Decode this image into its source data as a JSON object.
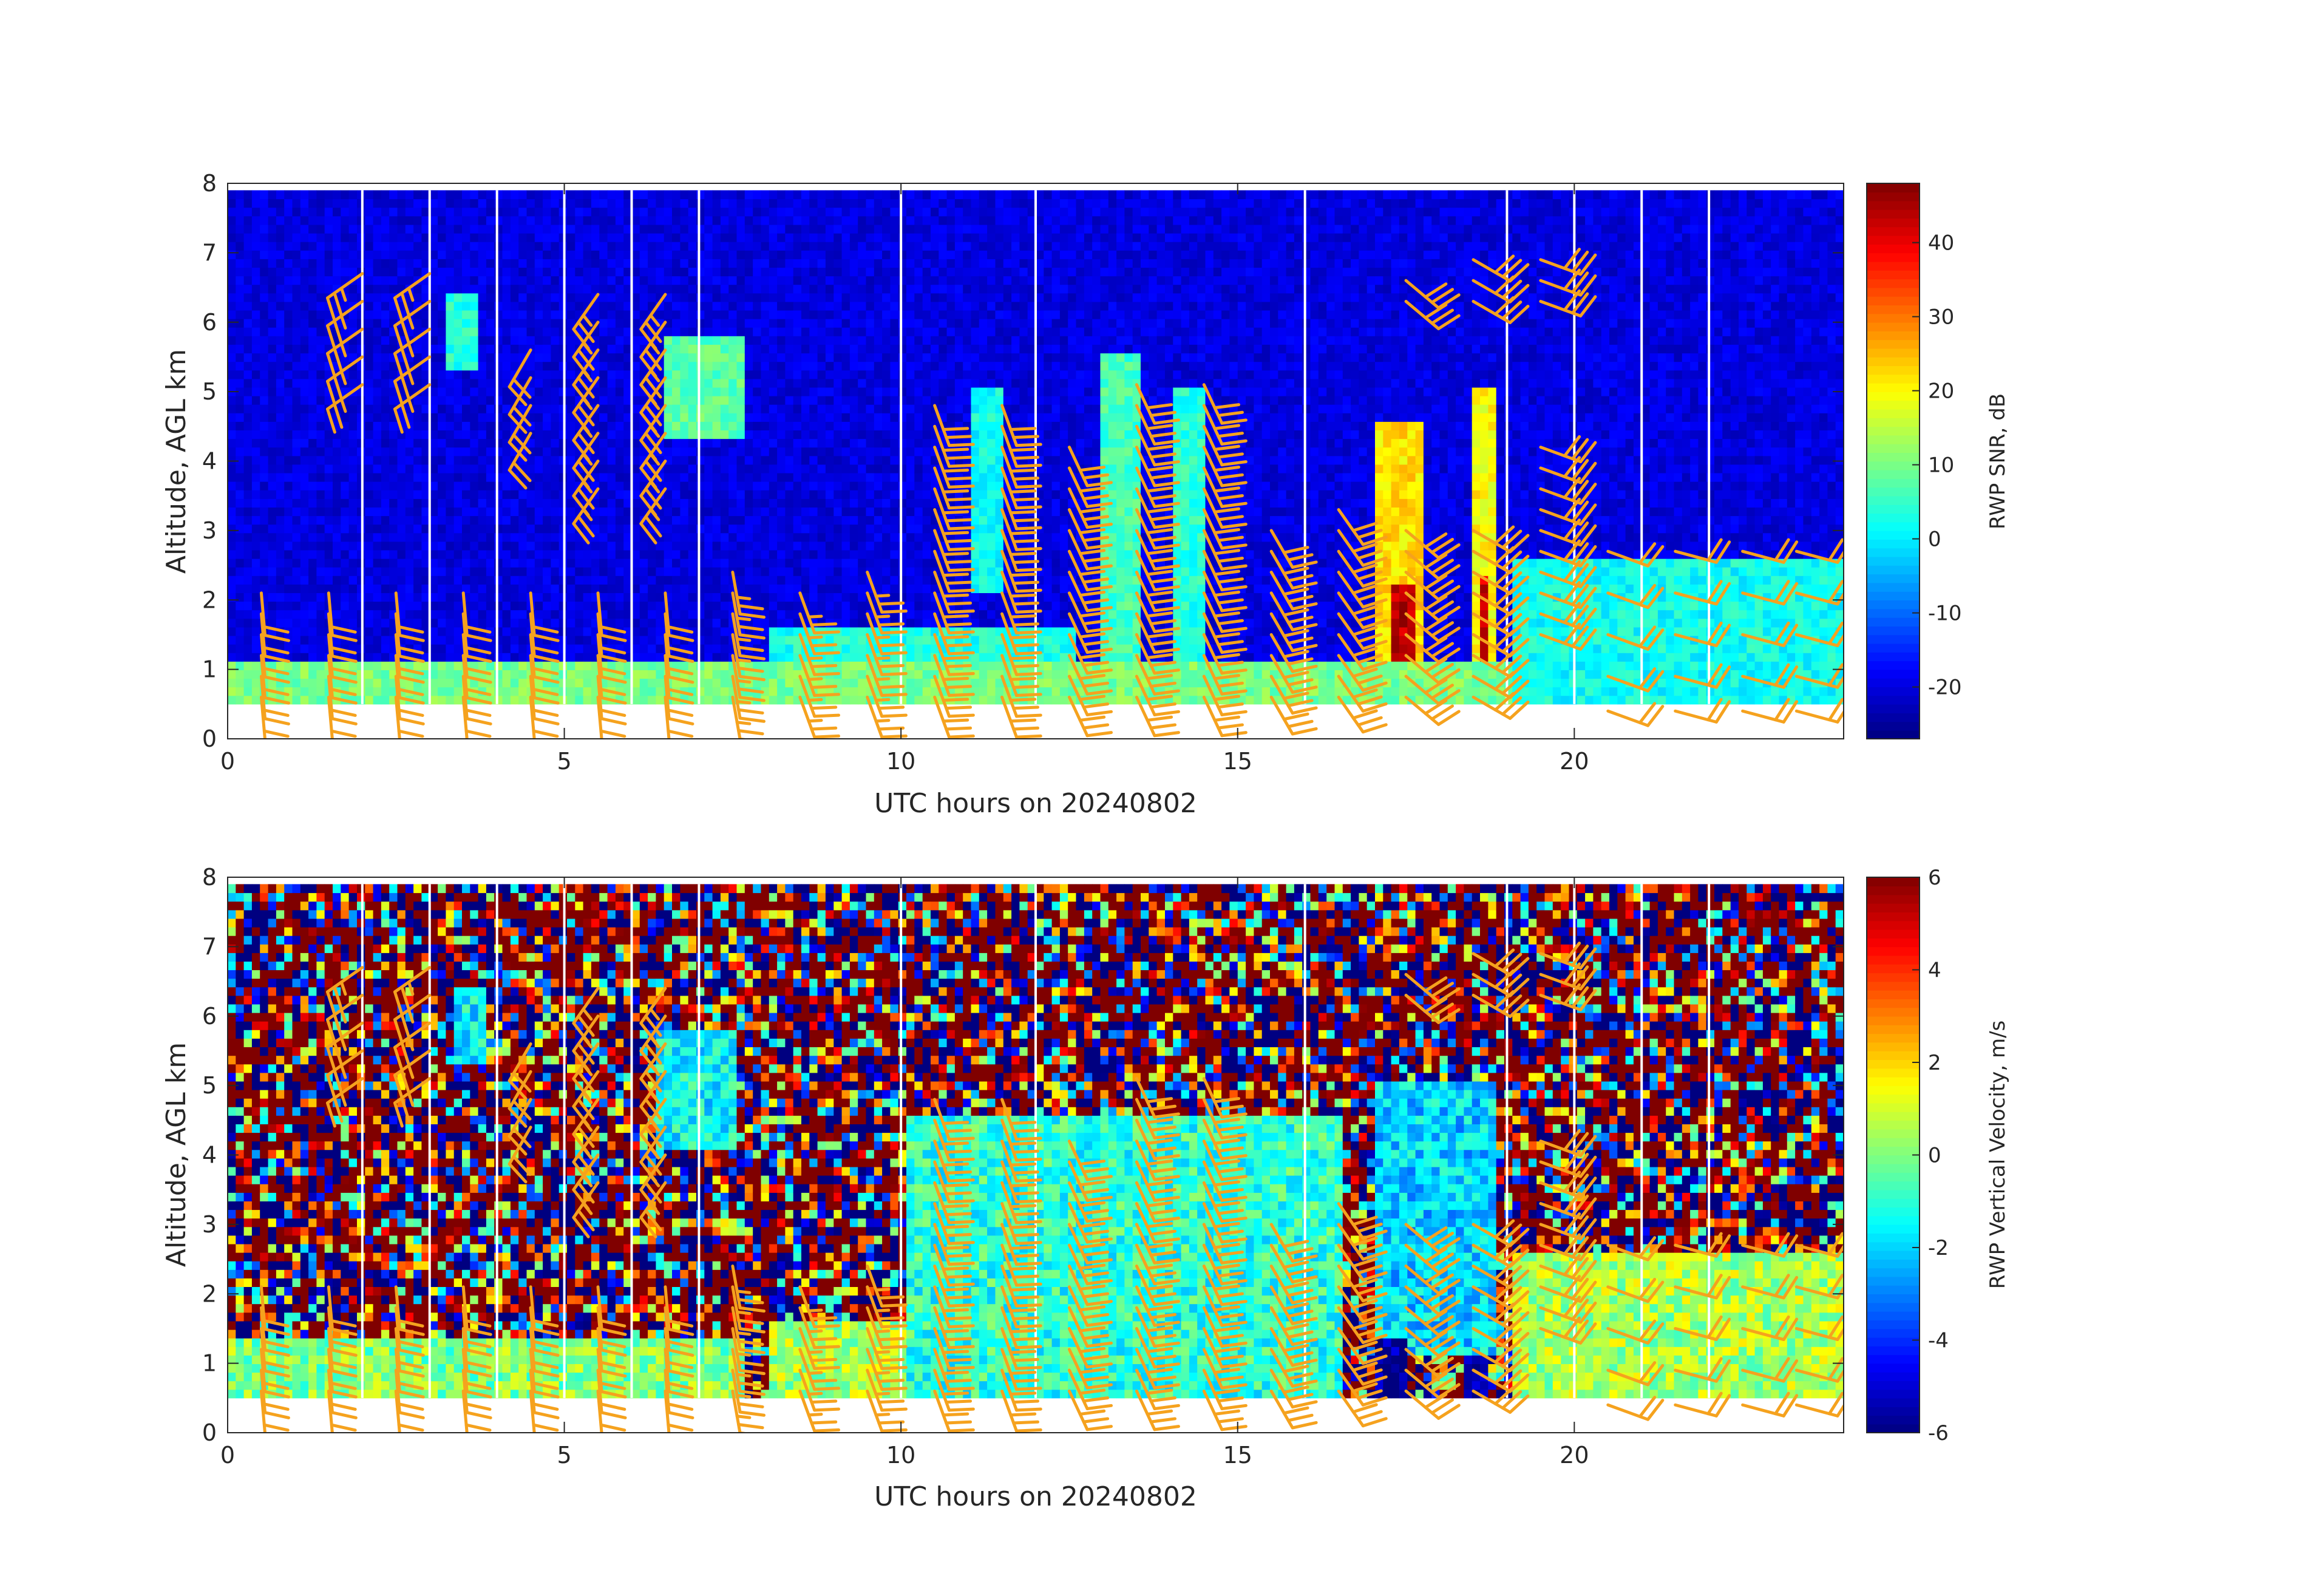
{
  "figure": {
    "background": "#ffffff"
  },
  "chart_data": [
    {
      "type": "heatmap",
      "field": "snr",
      "xlabel": "UTC hours on 20240802",
      "ylabel": "Altitude, AGL km",
      "xlim": [
        0,
        24
      ],
      "ylim": [
        0,
        8
      ],
      "xticks": [
        0,
        5,
        10,
        15,
        20
      ],
      "yticks": [
        0,
        1,
        2,
        3,
        4,
        5,
        6,
        7,
        8
      ],
      "colorbar": {
        "label": "RWP SNR, dB",
        "range": [
          -27,
          48
        ],
        "ticks": [
          40,
          30,
          20,
          10,
          0,
          -10,
          -20
        ],
        "colormap": "jet"
      },
      "data_altitude_range_km": [
        0.5,
        7.9
      ],
      "gaps_hours": [
        2.0,
        3.0,
        4.0,
        5.0,
        6.0,
        7.0,
        10.0,
        12.0,
        16.0,
        19.0,
        20.0,
        21.0,
        22.0
      ],
      "features": [
        {
          "x0": 6.4,
          "x1": 7.6,
          "y0": 4.3,
          "y1": 5.8,
          "value": 8
        },
        {
          "x0": 3.2,
          "x1": 3.7,
          "y0": 5.3,
          "y1": 6.3,
          "value": 4
        },
        {
          "x0": 17.0,
          "x1": 17.7,
          "y0": 0.5,
          "y1": 4.5,
          "value": 22
        },
        {
          "x0": 17.2,
          "x1": 17.6,
          "y0": 0.5,
          "y1": 2.2,
          "value": 44
        },
        {
          "x0": 18.4,
          "x1": 18.8,
          "y0": 0.5,
          "y1": 5.0,
          "value": 20
        },
        {
          "x0": 18.5,
          "x1": 18.7,
          "y0": 0.5,
          "y1": 2.3,
          "value": 42
        },
        {
          "x0": 12.9,
          "x1": 13.5,
          "y0": 0.5,
          "y1": 5.5,
          "value": 6
        },
        {
          "x0": 14.0,
          "x1": 14.5,
          "y0": 0.5,
          "y1": 5.0,
          "value": 4
        },
        {
          "x0": 11.0,
          "x1": 11.5,
          "y0": 2.0,
          "y1": 5.0,
          "value": 2
        },
        {
          "x0": 8.0,
          "x1": 12.5,
          "y0": 1.1,
          "y1": 1.6,
          "value": 3
        },
        {
          "x0": 0.0,
          "x1": 24.0,
          "y0": 0.5,
          "y1": 1.0,
          "value": 10
        },
        {
          "x0": 19.0,
          "x1": 24.0,
          "y0": 0.5,
          "y1": 2.5,
          "value": 2
        }
      ]
    },
    {
      "type": "heatmap",
      "field": "w",
      "xlabel": "UTC hours on 20240802",
      "ylabel": "Altitude, AGL km",
      "xlim": [
        0,
        24
      ],
      "ylim": [
        0,
        8
      ],
      "xticks": [
        0,
        5,
        10,
        15,
        20
      ],
      "yticks": [
        0,
        1,
        2,
        3,
        4,
        5,
        6,
        7,
        8
      ],
      "colorbar": {
        "label": "RWP Vertical Velocity, m/s",
        "range": [
          -6,
          6
        ],
        "ticks": [
          6,
          4,
          2,
          0,
          -2,
          -4,
          -6
        ],
        "colormap": "jet"
      },
      "data_altitude_range_km": [
        0.5,
        7.9
      ],
      "gaps_hours": [
        2.0,
        3.0,
        4.0,
        5.0,
        6.0,
        7.0,
        10.0,
        12.0,
        16.0,
        19.0,
        20.0,
        21.0,
        22.0
      ],
      "features": [
        {
          "x0": 0.0,
          "x1": 7.6,
          "y0": 0.5,
          "y1": 1.3,
          "value": 0
        },
        {
          "x0": 8.0,
          "x1": 12.5,
          "y0": 0.5,
          "y1": 1.6,
          "value": 0.5
        },
        {
          "x0": 6.3,
          "x1": 7.5,
          "y0": 4.0,
          "y1": 5.8,
          "value": -1.5
        },
        {
          "x0": 3.3,
          "x1": 3.8,
          "y0": 5.2,
          "y1": 6.3,
          "value": -1.5
        },
        {
          "x0": 17.0,
          "x1": 18.8,
          "y0": 1.0,
          "y1": 5.0,
          "value": -2
        },
        {
          "x0": 17.0,
          "x1": 17.4,
          "y0": 0.2,
          "y1": 1.3,
          "value": -6
        },
        {
          "x0": 18.3,
          "x1": 18.6,
          "y0": 0.2,
          "y1": 1.0,
          "value": -6
        },
        {
          "x0": 19.0,
          "x1": 24.0,
          "y0": 0.5,
          "y1": 2.5,
          "value": 0.5
        },
        {
          "x0": 10.0,
          "x1": 16.5,
          "y0": 0.5,
          "y1": 4.5,
          "value": -1
        }
      ]
    }
  ],
  "wind_barbs": {
    "color": "#f5a21e",
    "columns": [
      {
        "t": 0.5,
        "heights": [
          0.6,
          0.9,
          1.2,
          1.5,
          1.8,
          2.1
        ],
        "speed_kt": 20,
        "dir": 175
      },
      {
        "t": 1.5,
        "heights": [
          0.6,
          0.9,
          1.2,
          1.5,
          1.8,
          2.1
        ],
        "speed_kt": 20,
        "dir": 175
      },
      {
        "t": 2.5,
        "heights": [
          0.6,
          0.9,
          1.2,
          1.5,
          1.8,
          2.1
        ],
        "speed_kt": 20,
        "dir": 175
      },
      {
        "t": 3.5,
        "heights": [
          0.6,
          0.9,
          1.2,
          1.5,
          1.8,
          2.1
        ],
        "speed_kt": 20,
        "dir": 175
      },
      {
        "t": 4.5,
        "heights": [
          0.6,
          0.9,
          1.2,
          1.5,
          1.8,
          2.1
        ],
        "speed_kt": 20,
        "dir": 175
      },
      {
        "t": 5.5,
        "heights": [
          0.6,
          0.9,
          1.2,
          1.5,
          1.8,
          2.1
        ],
        "speed_kt": 20,
        "dir": 175
      },
      {
        "t": 6.5,
        "heights": [
          0.6,
          0.9,
          1.2,
          1.5,
          1.8,
          2.1
        ],
        "speed_kt": 20,
        "dir": 175
      },
      {
        "t": 7.5,
        "heights": [
          0.6,
          0.9,
          1.2,
          1.5,
          1.8,
          2.1,
          2.4
        ],
        "speed_kt": 25,
        "dir": 170
      },
      {
        "t": 8.5,
        "heights": [
          0.6,
          0.9,
          1.2,
          1.5,
          1.8,
          2.1
        ],
        "speed_kt": 25,
        "dir": 160
      },
      {
        "t": 9.5,
        "heights": [
          0.6,
          0.9,
          1.2,
          1.5,
          1.8,
          2.1,
          2.4
        ],
        "speed_kt": 25,
        "dir": 160
      },
      {
        "t": 10.5,
        "heights": [
          0.6,
          0.9,
          1.2,
          1.5,
          1.8,
          2.1,
          2.4,
          2.7,
          3.0,
          3.3,
          3.6,
          3.9,
          4.2,
          4.5,
          4.8
        ],
        "speed_kt": 30,
        "dir": 160
      },
      {
        "t": 11.5,
        "heights": [
          0.6,
          0.9,
          1.2,
          1.5,
          1.8,
          2.1,
          2.4,
          2.7,
          3.0,
          3.3,
          3.6,
          3.9,
          4.2,
          4.5,
          4.8
        ],
        "speed_kt": 30,
        "dir": 160
      },
      {
        "t": 12.5,
        "heights": [
          0.6,
          0.9,
          1.2,
          1.5,
          1.8,
          2.1,
          2.4,
          2.7,
          3.0,
          3.3,
          3.6,
          3.9,
          4.2
        ],
        "speed_kt": 30,
        "dir": 155
      },
      {
        "t": 13.5,
        "heights": [
          0.6,
          0.9,
          1.2,
          1.5,
          1.8,
          2.1,
          2.4,
          2.7,
          3.0,
          3.3,
          3.6,
          3.9,
          4.2,
          4.5,
          4.8,
          5.1
        ],
        "speed_kt": 30,
        "dir": 155
      },
      {
        "t": 14.5,
        "heights": [
          0.6,
          0.9,
          1.2,
          1.5,
          1.8,
          2.1,
          2.4,
          2.7,
          3.0,
          3.3,
          3.6,
          3.9,
          4.2,
          4.5,
          4.8,
          5.1
        ],
        "speed_kt": 30,
        "dir": 155
      },
      {
        "t": 15.5,
        "heights": [
          0.6,
          0.9,
          1.2,
          1.5,
          1.8,
          2.1,
          2.4,
          2.7,
          3.0
        ],
        "speed_kt": 30,
        "dir": 150
      },
      {
        "t": 16.5,
        "heights": [
          0.6,
          0.9,
          1.2,
          1.5,
          1.8,
          2.1,
          2.4,
          2.7,
          3.0,
          3.3
        ],
        "speed_kt": 30,
        "dir": 145
      },
      {
        "t": 17.5,
        "heights": [
          0.6,
          0.9,
          1.2,
          1.5,
          1.8,
          2.1,
          2.4,
          2.7,
          3.0,
          6.3,
          6.6
        ],
        "speed_kt": 30,
        "dir": 130
      },
      {
        "t": 18.5,
        "heights": [
          0.6,
          0.9,
          1.2,
          1.5,
          1.8,
          2.1,
          2.4,
          2.7,
          3.0,
          6.3,
          6.6,
          6.9
        ],
        "speed_kt": 30,
        "dir": 120
      },
      {
        "t": 19.5,
        "heights": [
          1.5,
          1.8,
          2.1,
          2.4,
          2.7,
          3.0,
          3.3,
          3.6,
          3.9,
          4.2,
          6.3,
          6.6,
          6.9
        ],
        "speed_kt": 30,
        "dir": 110
      },
      {
        "t": 20.5,
        "heights": [
          0.4,
          0.9,
          1.5,
          2.1,
          2.7
        ],
        "speed_kt": 20,
        "dir": 110
      },
      {
        "t": 21.5,
        "heights": [
          0.4,
          0.9,
          1.5,
          2.1,
          2.7
        ],
        "speed_kt": 20,
        "dir": 105
      },
      {
        "t": 22.5,
        "heights": [
          0.4,
          0.9,
          1.5,
          2.1,
          2.7
        ],
        "speed_kt": 20,
        "dir": 105
      },
      {
        "t": 23.3,
        "heights": [
          0.4,
          0.9,
          1.5,
          2.1,
          2.7
        ],
        "speed_kt": 20,
        "dir": 105
      },
      {
        "t": 2.0,
        "heights": [
          5.1,
          5.5,
          5.9,
          6.3,
          6.7
        ],
        "speed_kt": 25,
        "dir": 235
      },
      {
        "t": 3.0,
        "heights": [
          5.1,
          5.5,
          5.9,
          6.3,
          6.7
        ],
        "speed_kt": 25,
        "dir": 235
      },
      {
        "t": 4.5,
        "heights": [
          4.4,
          4.8,
          5.2,
          5.6
        ],
        "speed_kt": 20,
        "dir": 210
      },
      {
        "t": 5.5,
        "heights": [
          3.6,
          4.0,
          4.4,
          4.8,
          5.2,
          5.6,
          6.0,
          6.4
        ],
        "speed_kt": 25,
        "dir": 215
      },
      {
        "t": 6.5,
        "heights": [
          3.6,
          4.0,
          4.4,
          4.8,
          5.2,
          5.6,
          6.0,
          6.4
        ],
        "speed_kt": 25,
        "dir": 215
      }
    ]
  }
}
